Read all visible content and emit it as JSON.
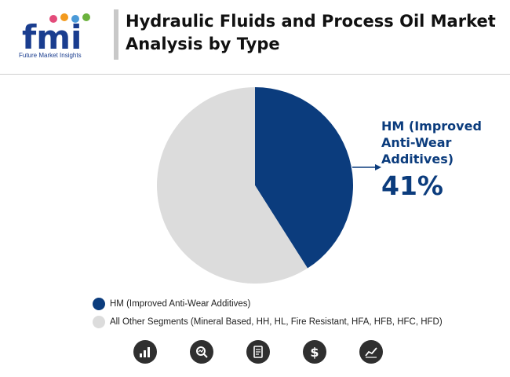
{
  "header": {
    "logo_caption": "Future Market Insights",
    "logo_letters": "fmi",
    "title": "Hydraulic Fluids and Process Oil Market Analysis by Type"
  },
  "chart_data": {
    "type": "pie",
    "title": "",
    "slices": [
      {
        "label": "HM (Improved Anti-Wear Additives)",
        "value": 41,
        "color": "#0b3c7d"
      },
      {
        "label": "All Other Segments (Mineral Based, HH, HL, Fire Resistant, HFA, HFB, HFC, HFD)",
        "value": 59,
        "color": "#dcdcdc"
      }
    ],
    "callout": {
      "label": "HM (Improved Anti-Wear Additives)",
      "value_text": "41%"
    },
    "legend_position": "bottom-left"
  },
  "legend": [
    {
      "label": "HM (Improved Anti-Wear Additives)",
      "color": "#0b3c7d"
    },
    {
      "label": "All Other Segments (Mineral Based, HH, HL, Fire Resistant, HFA, HFB, HFC, HFD)",
      "color": "#dcdcdc"
    }
  ],
  "footer_icons": [
    "bar-chart-icon",
    "magnifier-chart-icon",
    "document-icon",
    "dollar-icon",
    "line-chart-icon"
  ]
}
